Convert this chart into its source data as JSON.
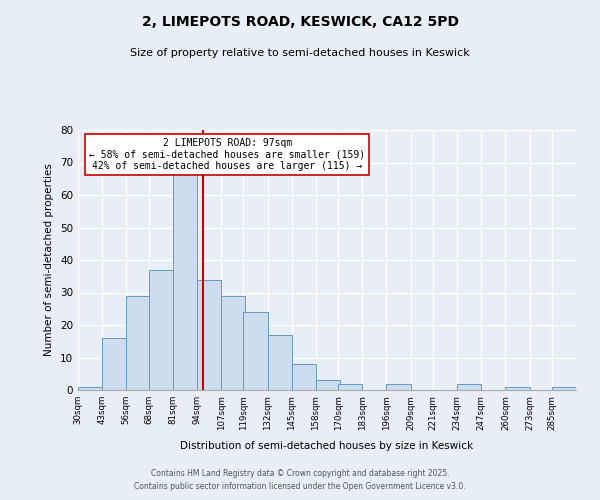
{
  "title": "2, LIMEPOTS ROAD, KESWICK, CA12 5PD",
  "subtitle": "Size of property relative to semi-detached houses in Keswick",
  "xlabel": "Distribution of semi-detached houses by size in Keswick",
  "ylabel": "Number of semi-detached properties",
  "bin_labels": [
    "30sqm",
    "43sqm",
    "56sqm",
    "68sqm",
    "81sqm",
    "94sqm",
    "107sqm",
    "119sqm",
    "132sqm",
    "145sqm",
    "158sqm",
    "170sqm",
    "183sqm",
    "196sqm",
    "209sqm",
    "221sqm",
    "234sqm",
    "247sqm",
    "260sqm",
    "273sqm",
    "285sqm"
  ],
  "bin_edges": [
    30,
    43,
    56,
    68,
    81,
    94,
    107,
    119,
    132,
    145,
    158,
    170,
    183,
    196,
    209,
    221,
    234,
    247,
    260,
    273,
    285
  ],
  "bar_heights": [
    1,
    16,
    29,
    37,
    67,
    34,
    29,
    24,
    17,
    8,
    3,
    2,
    0,
    2,
    0,
    0,
    2,
    0,
    1,
    0,
    1
  ],
  "bar_color": "#ccddf0",
  "bar_edge_color": "#6699bb",
  "property_value": 97,
  "property_label": "2 LIMEPOTS ROAD: 97sqm",
  "pct_smaller": 58,
  "pct_smaller_count": 159,
  "pct_larger": 42,
  "pct_larger_count": 115,
  "vline_color": "#cc0000",
  "ylim": [
    0,
    80
  ],
  "yticks": [
    0,
    10,
    20,
    30,
    40,
    50,
    60,
    70,
    80
  ],
  "annotation_box_color": "#ffffff",
  "annotation_box_edge_color": "#cc0000",
  "footer_line1": "Contains HM Land Registry data © Crown copyright and database right 2025.",
  "footer_line2": "Contains public sector information licensed under the Open Government Licence v3.0.",
  "background_color": "#e8eef5",
  "plot_bg_color": "#e8eef5",
  "grid_color": "#ffffff"
}
